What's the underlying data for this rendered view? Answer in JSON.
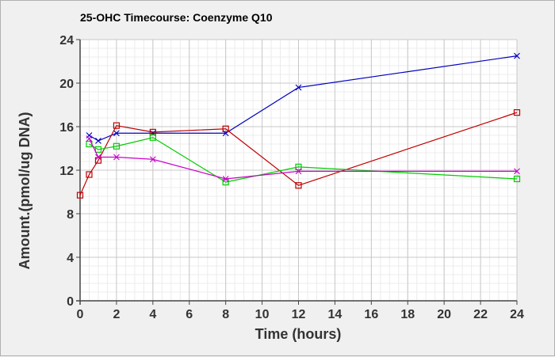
{
  "chart_data": {
    "type": "line",
    "title": "25-OHC Timecourse: Coenzyme Q10",
    "xlabel": "Time (hours)",
    "ylabel": "Amount.(pmol/ug DNA)",
    "xlim": [
      0,
      24
    ],
    "ylim": [
      0,
      24
    ],
    "xticks": [
      0,
      2,
      4,
      6,
      8,
      10,
      12,
      14,
      16,
      18,
      20,
      22,
      24
    ],
    "yticks": [
      0,
      4,
      8,
      12,
      16,
      20,
      24
    ],
    "grid": true,
    "legend": "none",
    "series": [
      {
        "color": "#0000c0",
        "marker": "x",
        "x": [
          0.5,
          1,
          2,
          4,
          8,
          12,
          24
        ],
        "y": [
          15.2,
          14.7,
          15.4,
          15.4,
          15.4,
          19.6,
          22.5
        ]
      },
      {
        "color": "#c00000",
        "marker": "square",
        "x": [
          0,
          0.5,
          1,
          2,
          4,
          8,
          12,
          24
        ],
        "y": [
          9.7,
          11.6,
          12.9,
          16.1,
          15.5,
          15.8,
          10.6,
          17.3
        ]
      },
      {
        "color": "#00cc00",
        "marker": "square",
        "x": [
          0.5,
          1,
          2,
          4,
          8,
          12,
          24
        ],
        "y": [
          14.4,
          13.9,
          14.2,
          15.0,
          10.9,
          12.3,
          11.2
        ]
      },
      {
        "color": "#cc00cc",
        "marker": "x",
        "x": [
          0.5,
          1,
          2,
          4,
          8,
          12,
          24
        ],
        "y": [
          14.9,
          13.2,
          13.2,
          13.0,
          11.2,
          11.9,
          11.9
        ]
      }
    ]
  }
}
